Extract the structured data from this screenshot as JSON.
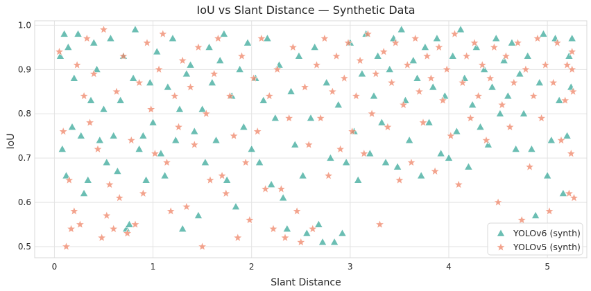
{
  "chart_data": {
    "type": "scatter",
    "title": "IoU vs Slant Distance — Synthetic Data",
    "xlabel": "Slant Distance",
    "ylabel": "IoU",
    "xlim": [
      -0.2,
      5.4
    ],
    "ylim": [
      0.475,
      1.01
    ],
    "xticks": [
      "0",
      "1",
      "2",
      "3",
      "4",
      "5"
    ],
    "yticks": [
      "0.5",
      "0.6",
      "0.7",
      "0.8",
      "0.9",
      "1.0"
    ],
    "grid": true,
    "legend_position": "bottom-right",
    "series": [
      {
        "name": "YOLOv6 (synth)",
        "marker": "triangle",
        "color": "#3aa899",
        "points": [
          [
            0.06,
            0.93
          ],
          [
            0.1,
            0.98
          ],
          [
            0.14,
            0.95
          ],
          [
            0.08,
            0.72
          ],
          [
            0.12,
            0.66
          ],
          [
            0.18,
            0.77
          ],
          [
            0.2,
            0.88
          ],
          [
            0.24,
            0.98
          ],
          [
            0.27,
            0.75
          ],
          [
            0.3,
            0.62
          ],
          [
            0.34,
            0.65
          ],
          [
            0.37,
            0.83
          ],
          [
            0.4,
            0.96
          ],
          [
            0.43,
            0.9
          ],
          [
            0.46,
            0.74
          ],
          [
            0.5,
            0.81
          ],
          [
            0.53,
            0.69
          ],
          [
            0.57,
            0.97
          ],
          [
            0.6,
            0.75
          ],
          [
            0.64,
            0.67
          ],
          [
            0.67,
            0.83
          ],
          [
            0.7,
            0.93
          ],
          [
            0.73,
            0.54
          ],
          [
            0.76,
            0.55
          ],
          [
            0.8,
            0.88
          ],
          [
            0.82,
            0.99
          ],
          [
            0.86,
            0.72
          ],
          [
            0.9,
            0.75
          ],
          [
            0.93,
            0.65
          ],
          [
            0.97,
            0.87
          ],
          [
            1.0,
            0.78
          ],
          [
            1.04,
            0.94
          ],
          [
            1.08,
            0.71
          ],
          [
            1.12,
            0.66
          ],
          [
            1.15,
            0.86
          ],
          [
            1.2,
            0.97
          ],
          [
            1.23,
            0.74
          ],
          [
            1.27,
            0.81
          ],
          [
            1.3,
            0.54
          ],
          [
            1.34,
            0.89
          ],
          [
            1.38,
            0.91
          ],
          [
            1.42,
            0.76
          ],
          [
            1.46,
            0.57
          ],
          [
            1.5,
            0.81
          ],
          [
            1.53,
            0.69
          ],
          [
            1.57,
            0.95
          ],
          [
            1.6,
            0.87
          ],
          [
            1.64,
            0.74
          ],
          [
            1.68,
            0.92
          ],
          [
            1.72,
            0.98
          ],
          [
            1.75,
            0.65
          ],
          [
            1.8,
            0.84
          ],
          [
            1.84,
            0.59
          ],
          [
            1.88,
            0.9
          ],
          [
            1.92,
            0.77
          ],
          [
            1.96,
            0.96
          ],
          [
            2.0,
            0.72
          ],
          [
            2.04,
            0.88
          ],
          [
            2.08,
            0.69
          ],
          [
            2.12,
            0.83
          ],
          [
            2.16,
            0.97
          ],
          [
            2.2,
            0.64
          ],
          [
            2.24,
            0.79
          ],
          [
            2.28,
            0.91
          ],
          [
            2.32,
            0.61
          ],
          [
            2.36,
            0.54
          ],
          [
            2.4,
            0.85
          ],
          [
            2.44,
            0.73
          ],
          [
            2.48,
            0.93
          ],
          [
            2.52,
            0.66
          ],
          [
            2.56,
            0.53
          ],
          [
            2.6,
            0.79
          ],
          [
            2.64,
            0.95
          ],
          [
            2.68,
            0.55
          ],
          [
            2.72,
            0.51
          ],
          [
            2.76,
            0.87
          ],
          [
            2.8,
            0.7
          ],
          [
            2.84,
            0.51
          ],
          [
            2.88,
            0.82
          ],
          [
            2.92,
            0.53
          ],
          [
            2.96,
            0.69
          ],
          [
            3.0,
            0.96
          ],
          [
            3.04,
            0.76
          ],
          [
            3.08,
            0.65
          ],
          [
            3.12,
            0.89
          ],
          [
            3.16,
            0.98
          ],
          [
            3.2,
            0.71
          ],
          [
            3.24,
            0.84
          ],
          [
            3.28,
            0.93
          ],
          [
            3.32,
            0.78
          ],
          [
            3.36,
            0.69
          ],
          [
            3.4,
            0.9
          ],
          [
            3.44,
            0.97
          ],
          [
            3.48,
            0.68
          ],
          [
            3.52,
            0.99
          ],
          [
            3.56,
            0.83
          ],
          [
            3.6,
            0.74
          ],
          [
            3.64,
            0.92
          ],
          [
            3.68,
            0.88
          ],
          [
            3.72,
            0.66
          ],
          [
            3.76,
            0.95
          ],
          [
            3.8,
            0.78
          ],
          [
            3.84,
            0.86
          ],
          [
            3.88,
            0.97
          ],
          [
            3.92,
            0.71
          ],
          [
            3.96,
            0.84
          ],
          [
            4.0,
            0.7
          ],
          [
            4.04,
            0.93
          ],
          [
            4.08,
            0.76
          ],
          [
            4.12,
            0.99
          ],
          [
            4.16,
            0.88
          ],
          [
            4.2,
            0.68
          ],
          [
            4.24,
            0.82
          ],
          [
            4.28,
            0.95
          ],
          [
            4.32,
            0.77
          ],
          [
            4.36,
            0.9
          ],
          [
            4.4,
            0.73
          ],
          [
            4.44,
            0.86
          ],
          [
            4.48,
            0.97
          ],
          [
            4.52,
            0.8
          ],
          [
            4.56,
            0.92
          ],
          [
            4.6,
            0.84
          ],
          [
            4.64,
            0.96
          ],
          [
            4.68,
            0.72
          ],
          [
            4.72,
            0.89
          ],
          [
            4.76,
            0.8
          ],
          [
            4.8,
            0.93
          ],
          [
            4.84,
            0.72
          ],
          [
            4.88,
            0.57
          ],
          [
            4.92,
            0.87
          ],
          [
            4.96,
            0.98
          ],
          [
            5.0,
            0.66
          ],
          [
            5.04,
            0.74
          ],
          [
            5.08,
            0.97
          ],
          [
            5.12,
            0.83
          ],
          [
            5.16,
            0.62
          ],
          [
            5.2,
            0.75
          ],
          [
            5.22,
            0.93
          ],
          [
            5.24,
            0.86
          ],
          [
            5.25,
            0.97
          ]
        ]
      },
      {
        "name": "YOLOv5 (synth)",
        "marker": "star",
        "color": "#ef8467",
        "points": [
          [
            0.05,
            0.94
          ],
          [
            0.09,
            0.76
          ],
          [
            0.12,
            0.5
          ],
          [
            0.15,
            0.65
          ],
          [
            0.17,
            0.54
          ],
          [
            0.2,
            0.58
          ],
          [
            0.23,
            0.91
          ],
          [
            0.26,
            0.55
          ],
          [
            0.3,
            0.84
          ],
          [
            0.33,
            0.97
          ],
          [
            0.36,
            0.78
          ],
          [
            0.4,
            0.89
          ],
          [
            0.44,
            0.72
          ],
          [
            0.48,
            0.52
          ],
          [
            0.5,
            0.99
          ],
          [
            0.53,
            0.57
          ],
          [
            0.56,
            0.64
          ],
          [
            0.6,
            0.54
          ],
          [
            0.63,
            0.85
          ],
          [
            0.66,
            0.61
          ],
          [
            0.7,
            0.93
          ],
          [
            0.74,
            0.53
          ],
          [
            0.78,
            0.74
          ],
          [
            0.82,
            0.55
          ],
          [
            0.86,
            0.87
          ],
          [
            0.9,
            0.62
          ],
          [
            0.94,
            0.96
          ],
          [
            0.98,
            0.81
          ],
          [
            1.02,
            0.71
          ],
          [
            1.06,
            0.9
          ],
          [
            1.1,
            0.98
          ],
          [
            1.14,
            0.69
          ],
          [
            1.18,
            0.58
          ],
          [
            1.22,
            0.84
          ],
          [
            1.26,
            0.77
          ],
          [
            1.3,
            0.92
          ],
          [
            1.34,
            0.59
          ],
          [
            1.38,
            0.86
          ],
          [
            1.42,
            0.73
          ],
          [
            1.46,
            0.95
          ],
          [
            1.5,
            0.5
          ],
          [
            1.54,
            0.8
          ],
          [
            1.58,
            0.65
          ],
          [
            1.62,
            0.89
          ],
          [
            1.66,
            0.97
          ],
          [
            1.7,
            0.66
          ],
          [
            1.74,
            0.62
          ],
          [
            1.78,
            0.84
          ],
          [
            1.82,
            0.75
          ],
          [
            1.86,
            0.52
          ],
          [
            1.9,
            0.93
          ],
          [
            1.94,
            0.69
          ],
          [
            1.98,
            0.56
          ],
          [
            2.02,
            0.88
          ],
          [
            2.06,
            0.76
          ],
          [
            2.1,
            0.97
          ],
          [
            2.14,
            0.63
          ],
          [
            2.18,
            0.84
          ],
          [
            2.22,
            0.54
          ],
          [
            2.26,
            0.9
          ],
          [
            2.3,
            0.63
          ],
          [
            2.34,
            0.52
          ],
          [
            2.38,
            0.79
          ],
          [
            2.42,
            0.95
          ],
          [
            2.46,
            0.58
          ],
          [
            2.5,
            0.51
          ],
          [
            2.54,
            0.86
          ],
          [
            2.58,
            0.73
          ],
          [
            2.62,
            0.54
          ],
          [
            2.66,
            0.91
          ],
          [
            2.7,
            0.79
          ],
          [
            2.74,
            0.97
          ],
          [
            2.78,
            0.66
          ],
          [
            2.82,
            0.85
          ],
          [
            2.86,
            0.93
          ],
          [
            2.9,
            0.72
          ],
          [
            2.94,
            0.88
          ],
          [
            2.98,
            0.96
          ],
          [
            3.02,
            0.76
          ],
          [
            3.06,
            0.84
          ],
          [
            3.1,
            0.92
          ],
          [
            3.14,
            0.71
          ],
          [
            3.18,
            0.98
          ],
          [
            3.22,
            0.8
          ],
          [
            3.26,
            0.89
          ],
          [
            3.3,
            0.55
          ],
          [
            3.34,
            0.94
          ],
          [
            3.38,
            0.77
          ],
          [
            3.42,
            0.87
          ],
          [
            3.46,
            0.96
          ],
          [
            3.5,
            0.65
          ],
          [
            3.54,
            0.82
          ],
          [
            3.58,
            0.91
          ],
          [
            3.62,
            0.69
          ],
          [
            3.66,
            0.97
          ],
          [
            3.7,
            0.85
          ],
          [
            3.74,
            0.78
          ],
          [
            3.78,
            0.93
          ],
          [
            3.82,
            0.88
          ],
          [
            3.86,
            0.67
          ],
          [
            3.9,
            0.95
          ],
          [
            3.94,
            0.83
          ],
          [
            3.98,
            0.9
          ],
          [
            4.02,
            0.75
          ],
          [
            4.06,
            0.98
          ],
          [
            4.1,
            0.64
          ],
          [
            4.14,
            0.87
          ],
          [
            4.18,
            0.93
          ],
          [
            4.22,
            0.79
          ],
          [
            4.26,
            0.96
          ],
          [
            4.3,
            0.84
          ],
          [
            4.34,
            0.91
          ],
          [
            4.38,
            0.74
          ],
          [
            4.42,
            0.88
          ],
          [
            4.46,
            0.95
          ],
          [
            4.5,
            0.6
          ],
          [
            4.54,
            0.82
          ],
          [
            4.58,
            0.93
          ],
          [
            4.62,
            0.77
          ],
          [
            4.66,
            0.87
          ],
          [
            4.7,
            0.96
          ],
          [
            4.74,
            0.56
          ],
          [
            4.78,
            0.9
          ],
          [
            4.82,
            0.68
          ],
          [
            4.86,
            0.84
          ],
          [
            4.9,
            0.97
          ],
          [
            4.94,
            0.79
          ],
          [
            4.98,
            0.91
          ],
          [
            5.02,
            0.58
          ],
          [
            5.06,
            0.87
          ],
          [
            5.1,
            0.96
          ],
          [
            5.14,
            0.74
          ],
          [
            5.18,
            0.83
          ],
          [
            5.2,
            0.91
          ],
          [
            5.22,
            0.62
          ],
          [
            5.24,
            0.71
          ],
          [
            5.25,
            0.94
          ],
          [
            5.26,
            0.85
          ],
          [
            5.27,
            0.61
          ],
          [
            5.25,
            0.9
          ]
        ]
      }
    ]
  }
}
